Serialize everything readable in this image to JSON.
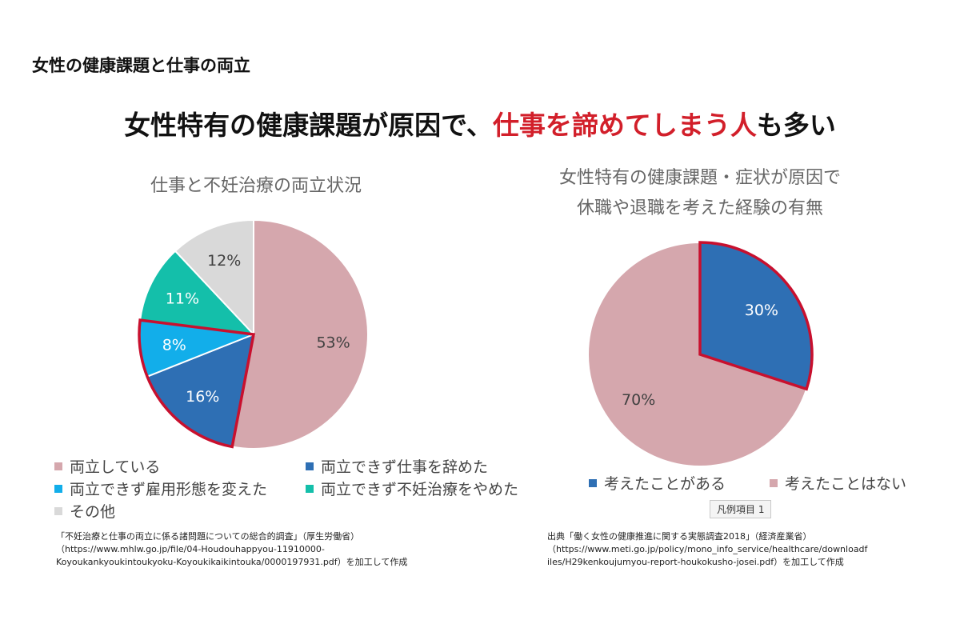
{
  "page_title": "女性の健康課題と仕事の両立",
  "headline": {
    "part1": "女性特有の健康課題が原因で、",
    "accent": "仕事を諦めてしまう人",
    "part2": "も多い"
  },
  "legend_tag": "凡例項目 1",
  "chart_data": [
    {
      "type": "pie",
      "title": "仕事と不妊治療の両立状況",
      "slices": [
        {
          "label": "両立している",
          "value": 53,
          "display": "53%",
          "color": "#d5a7ad"
        },
        {
          "label": "両立できず仕事を辞めた",
          "value": 16,
          "display": "16%",
          "color": "#2e6fb4"
        },
        {
          "label": "両立できず雇用形態を変えた",
          "value": 8,
          "display": "8%",
          "color": "#12aeea"
        },
        {
          "label": "両立できず不妊治療をやめた",
          "value": 11,
          "display": "11%",
          "color": "#14bfaa"
        },
        {
          "label": "その他",
          "value": 12,
          "display": "12%",
          "color": "#d9d9d9"
        }
      ],
      "highlighted": [
        1,
        2
      ],
      "highlight_color": "#c8102e",
      "source_lines": [
        "「不妊治療と仕事の両立に係る諸問題についての総合的調査」（厚生労働省）",
        "（https://www.mhlw.go.jp/file/04-Houdouhappyou-11910000-",
        "Koyoukankyoukintoukyoku-Koyoukikaikintouka/0000197931.pdf）を加工して作成"
      ]
    },
    {
      "type": "pie",
      "title_lines": [
        "女性特有の健康課題・症状が原因で",
        "休職や退職を考えた経験の有無"
      ],
      "slices": [
        {
          "label": "考えたことがある",
          "value": 30,
          "display": "30%",
          "color": "#2e6fb4"
        },
        {
          "label": "考えたことはない",
          "value": 70,
          "display": "70%",
          "color": "#d5a7ad"
        }
      ],
      "highlighted": [
        0
      ],
      "highlight_color": "#c8102e",
      "source_lines": [
        "出典「働く女性の健康推進に関する実態調査2018」（経済産業省）",
        "（https://www.meti.go.jp/policy/mono_info_service/healthcare/downloadf",
        "iles/H29kenkoujumyou-report-houkokusho-josei.pdf）を加工して作成"
      ]
    }
  ]
}
